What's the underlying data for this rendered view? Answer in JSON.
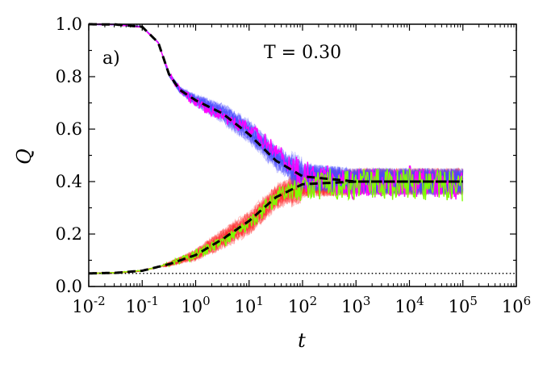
{
  "chart_data": {
    "type": "line",
    "panel_label": "a)",
    "annotation": "T = 0.30",
    "xlabel": "t",
    "ylabel": "Q",
    "xscale": "log",
    "xlim_exp": [
      -2,
      6
    ],
    "ylim": [
      0.0,
      1.0
    ],
    "x_tick_labels": [
      "10^-2",
      "10^-1",
      "10^0",
      "10^1",
      "10^2",
      "10^3",
      "10^4",
      "10^5",
      "10^6"
    ],
    "y_tick_labels": [
      "0.0",
      "0.2",
      "0.4",
      "0.6",
      "0.8",
      "1.0"
    ],
    "x_data_range": [
      0.01,
      100000
    ],
    "reference_level": 0.05,
    "series": [
      {
        "name": "blue trajectories (start Q=1)",
        "color": "#4d4dff",
        "style": "thin translucent, many runs",
        "log10_t": [
          -2,
          -1.5,
          -1,
          -0.7,
          -0.5,
          -0.3,
          0,
          0.5,
          1,
          1.5,
          2,
          3,
          4,
          5
        ],
        "Q": [
          1.0,
          0.999,
          0.99,
          0.93,
          0.81,
          0.75,
          0.71,
          0.66,
          0.59,
          0.49,
          0.42,
          0.4,
          0.4,
          0.4
        ]
      },
      {
        "name": "magenta trajectory",
        "color": "#ff00ff",
        "style": "single run",
        "log10_t": [
          -2,
          -1.5,
          -1,
          -0.7,
          -0.5,
          -0.3,
          0,
          0.5,
          1,
          1.5,
          2,
          3,
          4,
          5
        ],
        "Q": [
          1.0,
          0.999,
          0.99,
          0.93,
          0.81,
          0.75,
          0.7,
          0.65,
          0.6,
          0.52,
          0.42,
          0.39,
          0.4,
          0.39
        ]
      },
      {
        "name": "red trajectories (start Q≈0.05)",
        "color": "#ff2a2a",
        "style": "thin translucent, many runs",
        "log10_t": [
          -2,
          -1.5,
          -1,
          -0.5,
          0,
          0.5,
          1,
          1.5,
          2,
          3,
          4,
          5
        ],
        "Q": [
          0.05,
          0.052,
          0.06,
          0.085,
          0.12,
          0.18,
          0.24,
          0.34,
          0.39,
          0.4,
          0.4,
          0.4
        ]
      },
      {
        "name": "green trajectory",
        "color": "#7fff00",
        "style": "single run",
        "log10_t": [
          -2,
          -1.5,
          -1,
          -0.5,
          0,
          0.5,
          1,
          1.5,
          2,
          3,
          4,
          5
        ],
        "Q": [
          0.05,
          0.052,
          0.06,
          0.085,
          0.12,
          0.17,
          0.24,
          0.34,
          0.39,
          0.39,
          0.39,
          0.38
        ]
      },
      {
        "name": "mean (upper)",
        "color": "#000000",
        "style": "dashed",
        "log10_t": [
          -2,
          -1.5,
          -1,
          -0.7,
          -0.5,
          -0.3,
          0,
          0.5,
          1,
          1.5,
          2,
          3,
          4,
          5
        ],
        "Q": [
          1.0,
          0.999,
          0.99,
          0.93,
          0.81,
          0.75,
          0.71,
          0.66,
          0.58,
          0.48,
          0.42,
          0.4,
          0.4,
          0.4
        ]
      },
      {
        "name": "mean (lower)",
        "color": "#000000",
        "style": "dashed",
        "log10_t": [
          -2,
          -1.5,
          -1,
          -0.5,
          0,
          0.5,
          1,
          1.5,
          2,
          3,
          4,
          5
        ],
        "Q": [
          0.05,
          0.052,
          0.06,
          0.085,
          0.12,
          0.18,
          0.25,
          0.34,
          0.39,
          0.4,
          0.4,
          0.4
        ]
      }
    ]
  }
}
